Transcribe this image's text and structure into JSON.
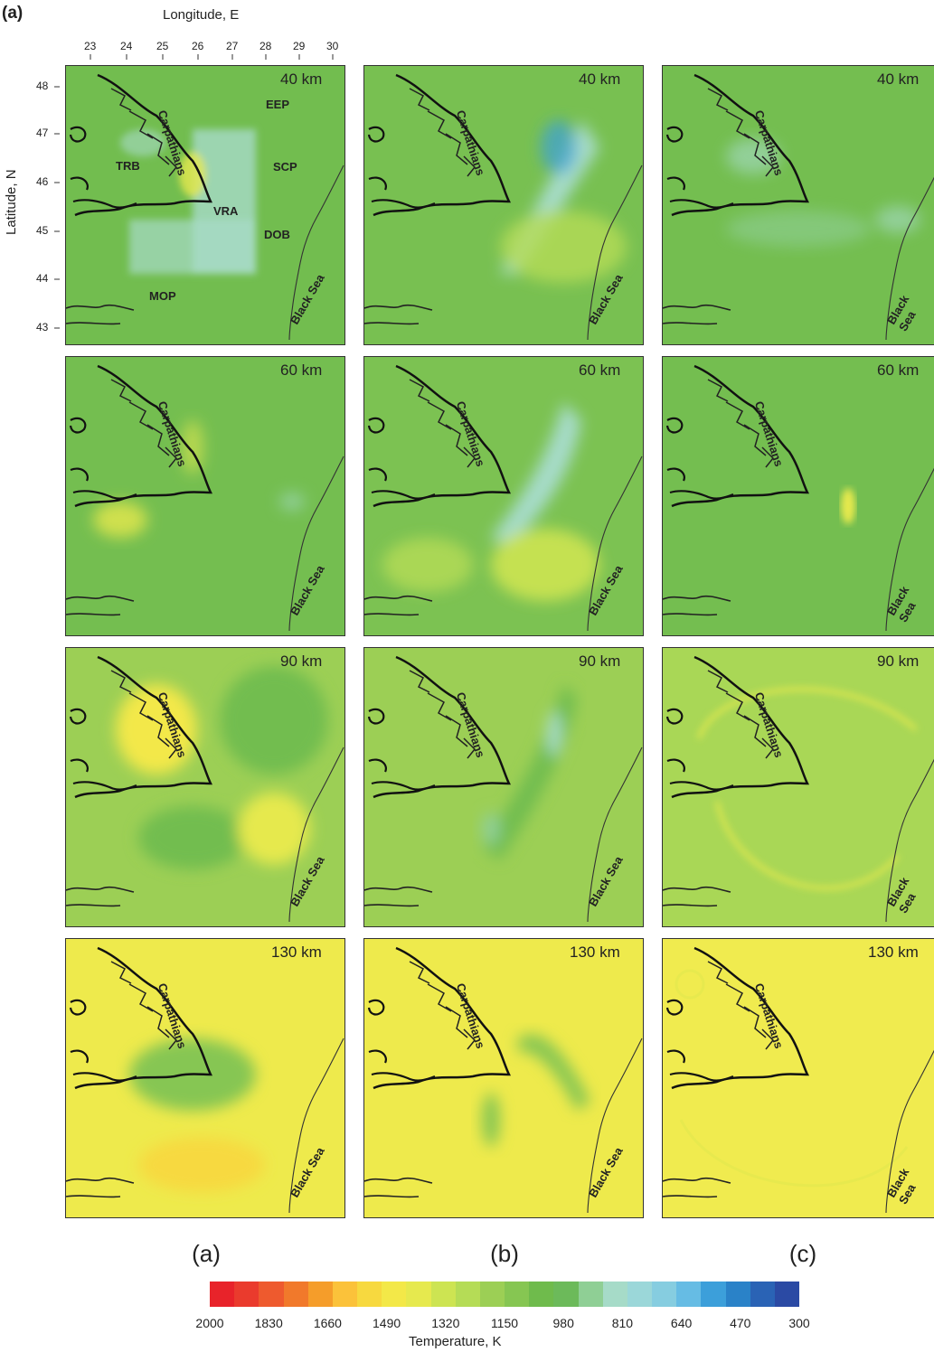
{
  "figure_label": "(a)",
  "x_axis_title": "Longitude, E",
  "y_axis_title": "Latitude, N",
  "lon_ticks": [
    "23",
    "24",
    "25",
    "26",
    "27",
    "28",
    "29",
    "30"
  ],
  "lat_ticks": [
    "48",
    "47",
    "46",
    "45",
    "44",
    "43"
  ],
  "region_labels": [
    "EEP",
    "TRB",
    "SCP",
    "VRA",
    "DOB",
    "MOP"
  ],
  "map_labels": {
    "mountains": "Carpathians",
    "sea": "Black Sea"
  },
  "depths": [
    "40 km",
    "60 km",
    "90 km",
    "130 km"
  ],
  "columns": [
    "(a)",
    "(b)",
    "(c)"
  ],
  "colorbar": {
    "title": "Temperature, K",
    "ticks": [
      "2000",
      "1830",
      "1660",
      "1490",
      "1320",
      "1150",
      "980",
      "810",
      "640",
      "470",
      "300"
    ],
    "colors": [
      "#e8232a",
      "#ea3b2d",
      "#ee5a2e",
      "#f1792b",
      "#f59d2a",
      "#fbc23a",
      "#f7d93f",
      "#f3e848",
      "#e6e94e",
      "#cde452",
      "#b5dc56",
      "#9ccf55",
      "#86c652",
      "#6fbb4c",
      "#6cba5a",
      "#8fcf95",
      "#a6dbc8",
      "#9bd7d9",
      "#86cde0",
      "#66bce4",
      "#3c9fda",
      "#2a82c8",
      "#2a63b5",
      "#2b4aa4"
    ]
  }
}
